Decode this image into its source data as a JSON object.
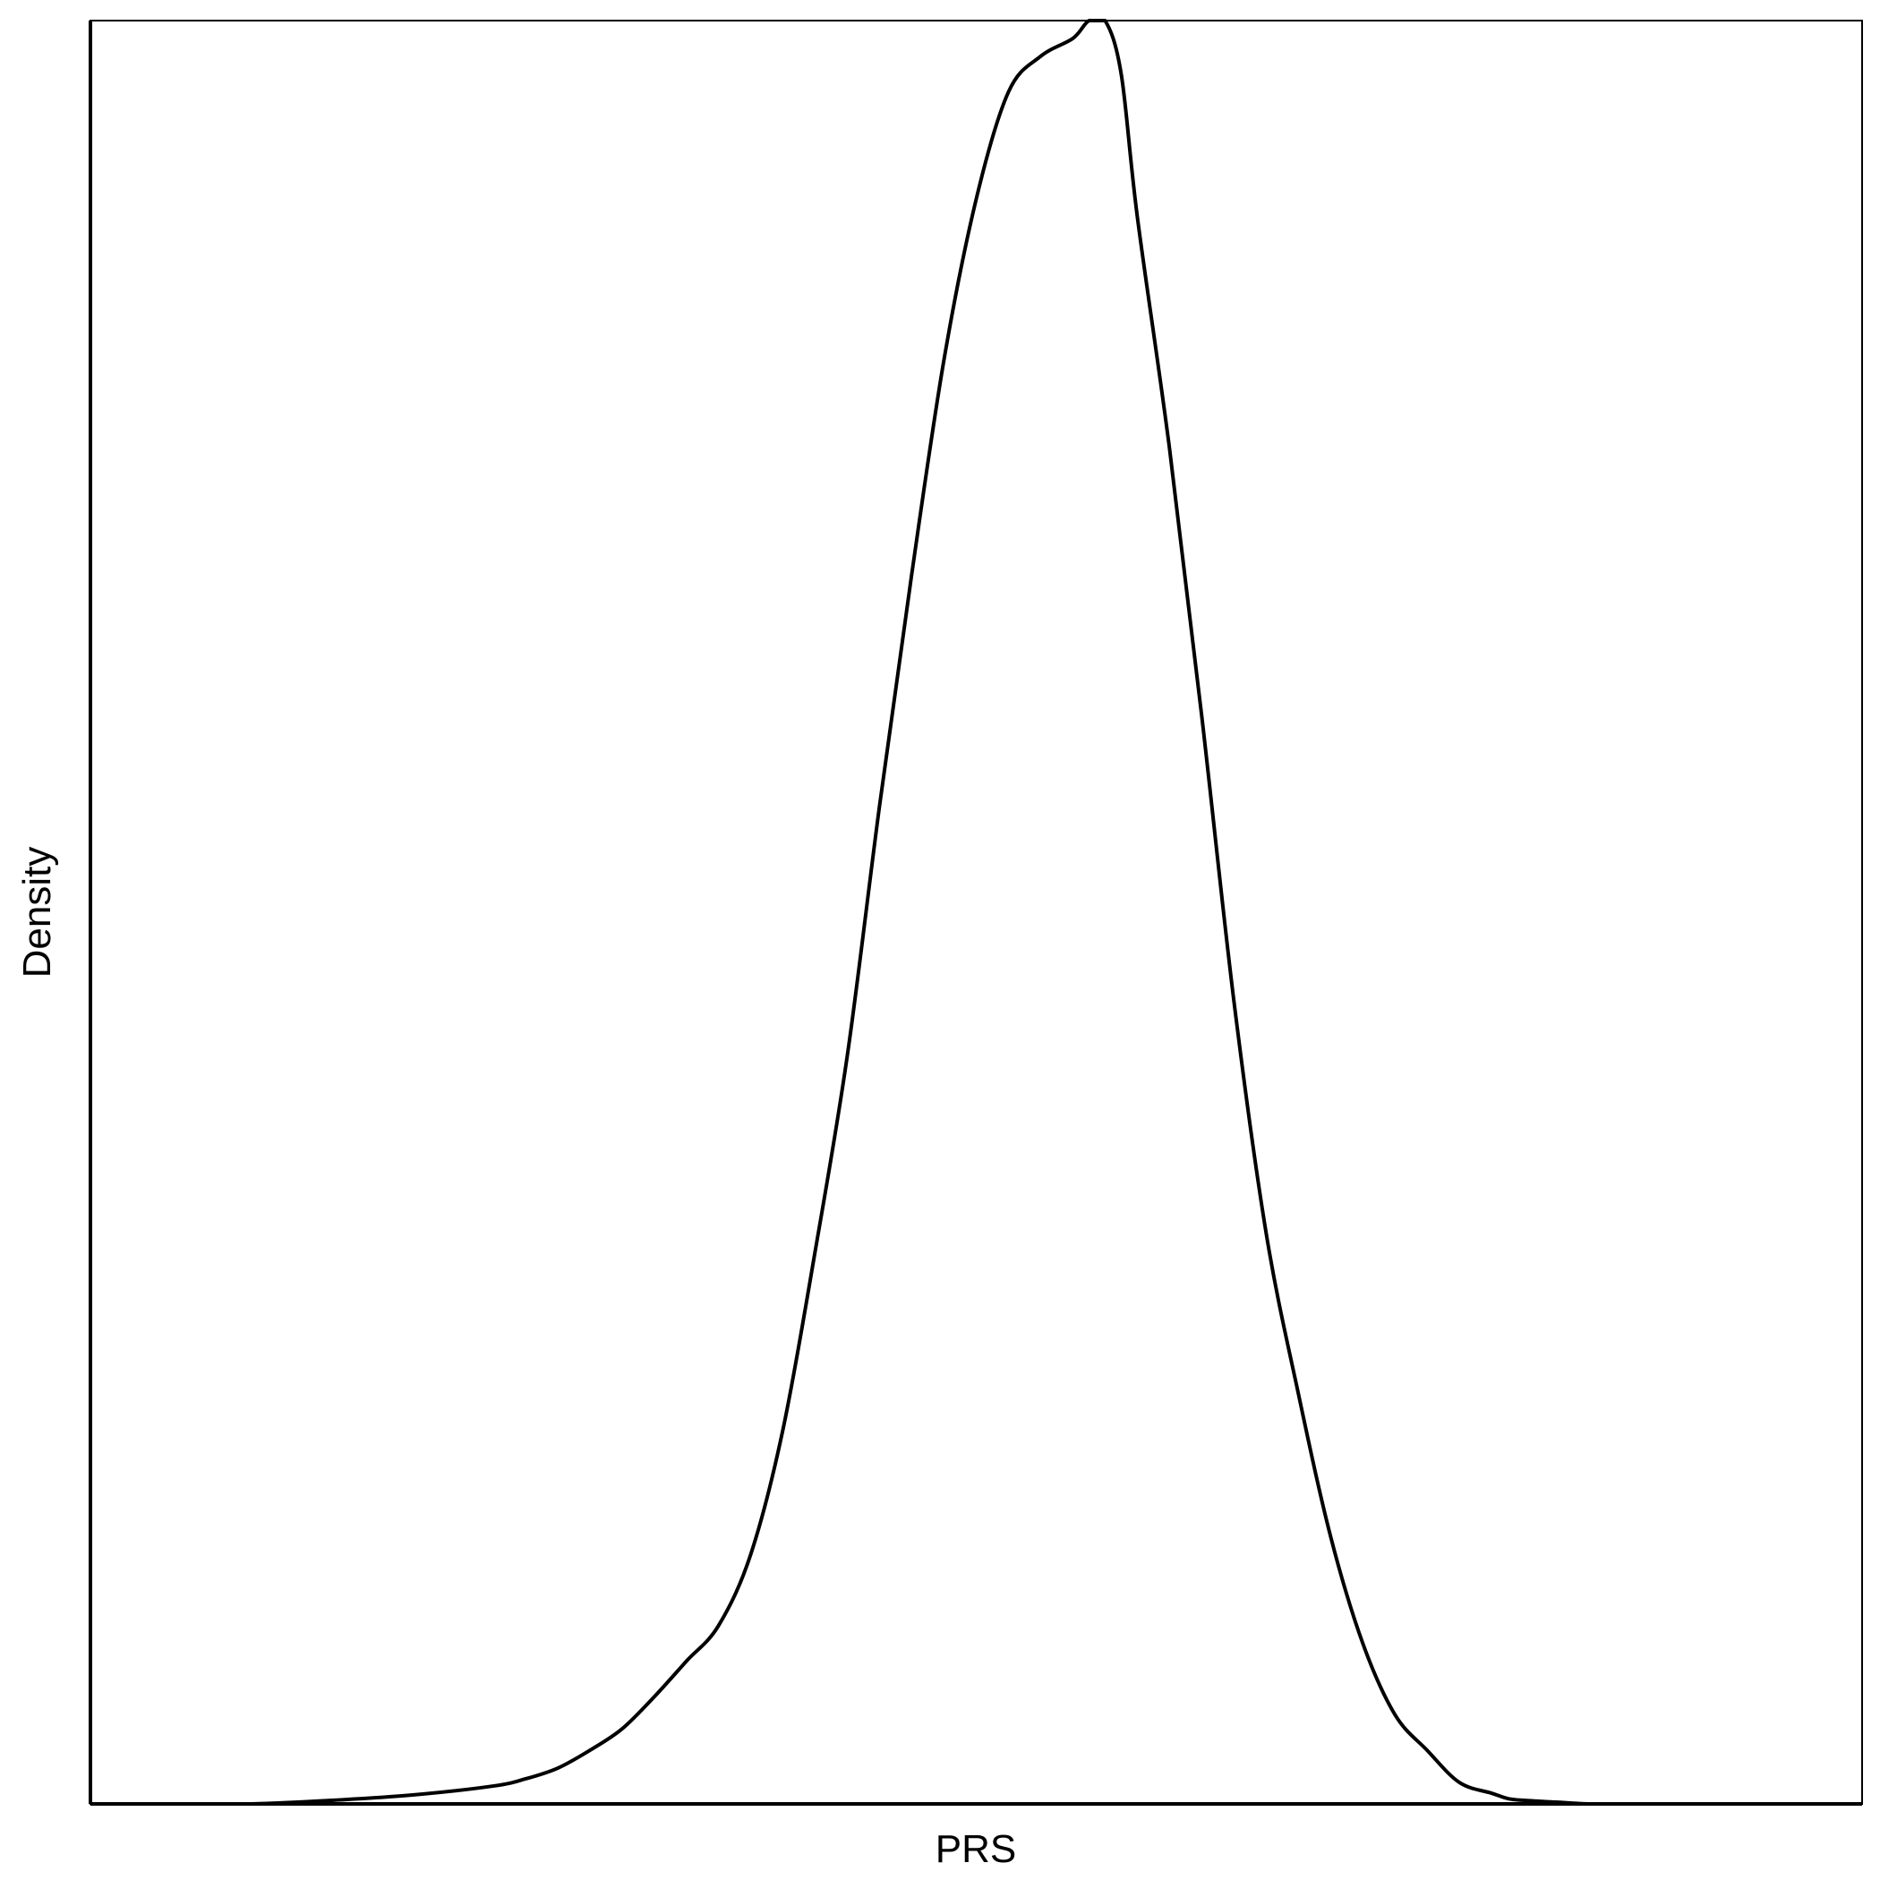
{
  "chart_data": {
    "type": "line",
    "title": "",
    "xlabel": "PRS",
    "ylabel": "Density",
    "grid": false,
    "legend": "none",
    "series": [
      {
        "x": [
          0,
          5,
          10,
          15,
          20,
          22,
          24,
          26,
          28,
          30,
          32,
          34,
          36,
          38,
          40,
          42,
          44,
          46,
          48,
          50,
          52,
          54,
          56,
          57,
          58,
          59,
          60,
          62,
          64,
          66,
          68,
          70,
          72,
          74,
          76,
          78,
          80,
          82,
          83,
          84,
          86,
          88,
          90,
          92,
          94,
          96,
          100
        ],
        "y": [
          0.0,
          0.0,
          0.002,
          0.005,
          0.01,
          0.014,
          0.02,
          0.03,
          0.042,
          0.06,
          0.08,
          0.1,
          0.14,
          0.21,
          0.31,
          0.42,
          0.56,
          0.69,
          0.81,
          0.9,
          0.96,
          0.98,
          0.99,
          1.0,
          1.0,
          0.97,
          0.89,
          0.76,
          0.61,
          0.45,
          0.32,
          0.23,
          0.15,
          0.09,
          0.05,
          0.03,
          0.012,
          0.006,
          0.003,
          0.002,
          0.001,
          0.0,
          0.0,
          0.0,
          0.0,
          0.0,
          0.0
        ]
      }
    ],
    "xlim": [
      -5,
      105
    ],
    "ylim": [
      0,
      1.0
    ],
    "line_color": "#000000",
    "axis_color": "#000000"
  }
}
